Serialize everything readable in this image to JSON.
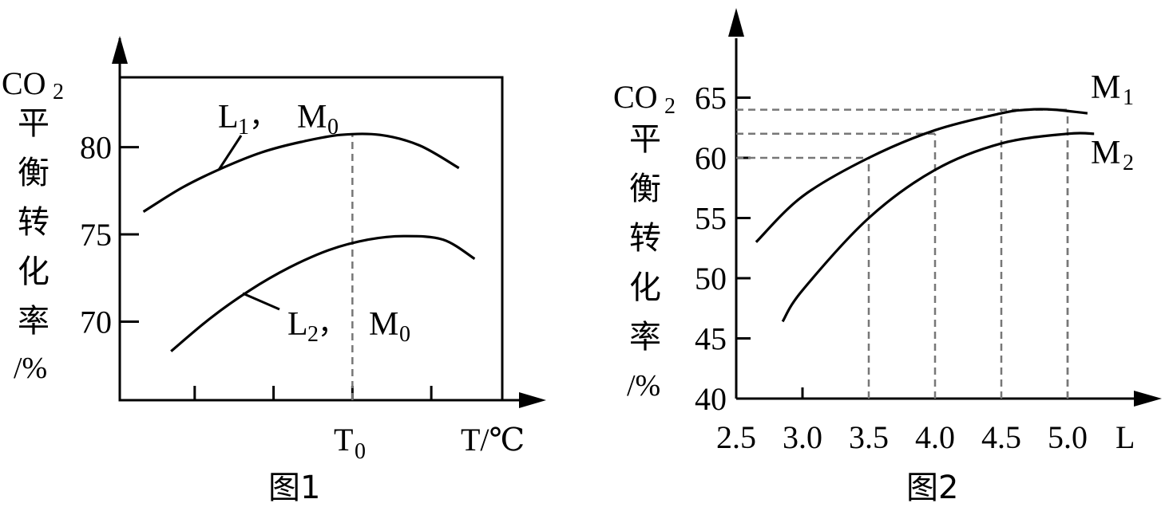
{
  "chart_data": [
    {
      "type": "line",
      "caption": "图1",
      "xlabel": "T/℃",
      "ylabel": {
        "prefix": "CO",
        "sub": "2",
        "chars": [
          "平",
          "衡",
          "转",
          "化",
          "率"
        ],
        "unit": "/%"
      },
      "yticks": [
        80,
        75,
        70
      ],
      "ylim": [
        65.5,
        84
      ],
      "xlim": [
        0,
        4.85
      ],
      "x_marked": {
        "x": 2.95,
        "label_main": "T",
        "label_sub": "0"
      },
      "x_minor_ticks": [
        0.95,
        1.95,
        2.95,
        3.95
      ],
      "frame": true,
      "series": [
        {
          "name": {
            "l": "L",
            "ls": "1",
            "sep": "，",
            "m": "M",
            "ms": "0"
          },
          "x": [
            0.3,
            0.8,
            1.3,
            1.8,
            2.3,
            2.8,
            3.3,
            3.8,
            4.3
          ],
          "y": [
            76.3,
            77.7,
            78.8,
            79.7,
            80.3,
            80.7,
            80.7,
            80.1,
            78.8
          ]
        },
        {
          "name": {
            "l": "L",
            "ls": "2",
            "sep": "，",
            "m": "M",
            "ms": "0"
          },
          "x": [
            0.65,
            1.15,
            1.65,
            2.15,
            2.65,
            3.15,
            3.6,
            4.1,
            4.5
          ],
          "y": [
            68.3,
            70.2,
            71.8,
            73.1,
            74.1,
            74.7,
            74.9,
            74.7,
            73.6
          ]
        }
      ]
    },
    {
      "type": "line",
      "caption": "图2",
      "xlabel": "L",
      "ylabel": {
        "prefix": "CO",
        "sub": "2",
        "chars": [
          "平",
          "衡",
          "转",
          "化",
          "率"
        ],
        "unit": "/%"
      },
      "xticks": [
        "2.5",
        "3.0",
        "3.5",
        "4.0",
        "4.5",
        "5.0"
      ],
      "yticks": [
        65,
        60,
        55,
        50,
        45,
        40
      ],
      "xlim": [
        2.5,
        5.5
      ],
      "ylim": [
        40,
        70
      ],
      "guides": [
        {
          "x": 3.5,
          "y": 60
        },
        {
          "x": 4.0,
          "y": 62
        },
        {
          "x": 4.5,
          "y": 64
        },
        {
          "x": 5.0,
          "y": 62
        },
        {
          "x": 5.0,
          "y": 64
        }
      ],
      "series": [
        {
          "name": {
            "m": "M",
            "ms": "1"
          },
          "x": [
            2.65,
            3.0,
            3.5,
            4.0,
            4.5,
            4.7,
            4.9,
            5.15
          ],
          "y": [
            53.0,
            56.8,
            60.0,
            62.3,
            63.7,
            64.0,
            64.0,
            63.7
          ]
        },
        {
          "name": {
            "m": "M",
            "ms": "2"
          },
          "x": [
            2.85,
            3.0,
            3.5,
            4.0,
            4.5,
            5.0,
            5.2
          ],
          "y": [
            46.4,
            49.0,
            55.0,
            59.0,
            61.2,
            62.0,
            62.0
          ]
        }
      ]
    }
  ]
}
